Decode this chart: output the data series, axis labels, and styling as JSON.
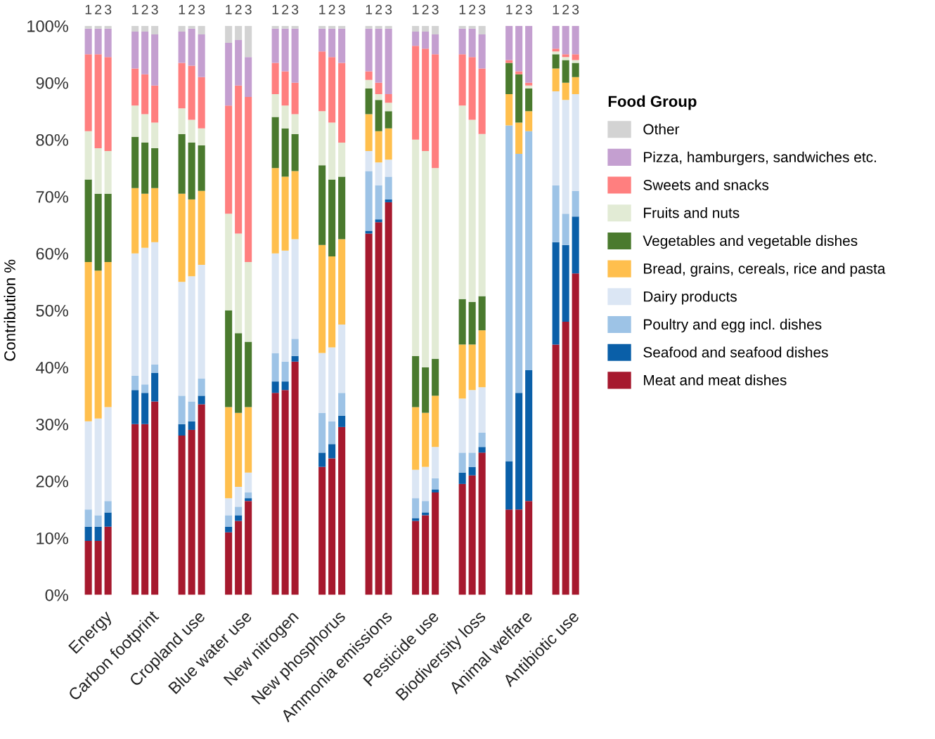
{
  "chart_data": {
    "type": "bar",
    "stacked": true,
    "ylabel": "Contribution %",
    "legend_title": "Food Group",
    "legend": "right",
    "grid": false,
    "categories": [
      "1",
      "2",
      "3",
      "1",
      "2",
      "3",
      "1",
      "2",
      "3",
      "1",
      "2",
      "3",
      "1",
      "2",
      "3",
      "1",
      "2",
      "3",
      "1",
      "2",
      "3",
      "1",
      "2",
      "3",
      "1",
      "2",
      "3",
      "1",
      "2",
      "3",
      "1",
      "2",
      "3"
    ],
    "annotations": [
      "Energy",
      "Carbon footprint",
      "Cropland use",
      "Blue water use",
      "New nitrogen",
      "New phosphorus",
      "Ammonia emissions",
      "Pesticide use",
      "Biodiversity loss",
      "Animal welfare",
      "Antibiotic use"
    ],
    "ylim": [
      0,
      100
    ],
    "yticks": [
      {
        "value": 0,
        "label": "0%"
      },
      {
        "value": 10,
        "label": "10%"
      },
      {
        "value": 20,
        "label": "20%"
      },
      {
        "value": 30,
        "label": "30%"
      },
      {
        "value": 40,
        "label": "40%"
      },
      {
        "value": 50,
        "label": "50%"
      },
      {
        "value": 60,
        "label": "60%"
      },
      {
        "value": 70,
        "label": "70%"
      },
      {
        "value": 80,
        "label": "80%"
      },
      {
        "value": 90,
        "label": "90%"
      },
      {
        "value": 100,
        "label": "100%"
      }
    ],
    "series": [
      {
        "name": "Meat and meat dishes",
        "color": "#a6192e",
        "values": [
          9.5,
          9.5,
          12,
          30,
          30,
          34,
          28,
          29,
          33.5,
          11,
          13,
          16.5,
          35.5,
          36,
          41,
          22.5,
          24,
          29.5,
          63.5,
          65.5,
          69,
          13,
          14,
          18,
          19.5,
          21,
          25,
          15,
          15,
          16.5,
          44,
          48,
          56.5
        ]
      },
      {
        "name": "Seafood and seafood dishes",
        "color": "#0a5fa8",
        "values": [
          2.5,
          2.5,
          2.5,
          6,
          5.5,
          5,
          2,
          1.5,
          1.5,
          1,
          1,
          0.5,
          2,
          1.5,
          1,
          2.5,
          2.5,
          2,
          0.5,
          0.5,
          0.5,
          0.5,
          0.5,
          0.5,
          2,
          1.5,
          1,
          8.5,
          20.5,
          23,
          18,
          13.5,
          10
        ]
      },
      {
        "name": "Poultry and egg incl. dishes",
        "color": "#9dc3e6",
        "values": [
          3,
          2,
          2,
          2.5,
          1.5,
          1.5,
          5,
          3.5,
          3,
          2,
          1.5,
          1,
          5,
          3.5,
          3,
          7,
          4,
          4,
          10.5,
          6,
          4,
          3.5,
          2,
          2,
          3.5,
          2.5,
          2.5,
          59,
          42,
          42,
          10,
          5.5,
          4.5
        ]
      },
      {
        "name": "Dairy products",
        "color": "#dbe6f4",
        "values": [
          15.5,
          17,
          16.5,
          21.5,
          24,
          21.5,
          20,
          22,
          20,
          3,
          3.5,
          3.5,
          17.5,
          19.5,
          17.5,
          10.5,
          13,
          12,
          3.5,
          4,
          3,
          5,
          6,
          5.5,
          9.5,
          11,
          8,
          0,
          0,
          0,
          16.5,
          20,
          17
        ]
      },
      {
        "name": "Bread, grains, cereals, rice and pasta",
        "color": "#ffbf4d",
        "values": [
          28,
          26,
          25.5,
          11.5,
          9.5,
          9.5,
          15.5,
          13.5,
          13,
          16,
          13,
          11.5,
          15,
          13,
          12,
          19,
          16,
          15,
          6.5,
          5.5,
          5.5,
          11,
          9.5,
          9,
          9.5,
          8,
          10,
          5.5,
          5.5,
          3.5,
          4,
          3,
          3
        ]
      },
      {
        "name": "Vegetables and vegetable dishes",
        "color": "#4a7a2e",
        "values": [
          14.5,
          13.5,
          12,
          9,
          9,
          7,
          10.5,
          10,
          8,
          17,
          14,
          11.5,
          9,
          8.5,
          6.5,
          14,
          13.5,
          11,
          4.5,
          5.5,
          3,
          9,
          8,
          6.5,
          8,
          7.5,
          6,
          5.5,
          8.5,
          4,
          2.5,
          4,
          2.5
        ]
      },
      {
        "name": "Fruits and nuts",
        "color": "#e2ebd5",
        "values": [
          8.5,
          8,
          7.5,
          5.5,
          5,
          4.5,
          4.5,
          4,
          3,
          17,
          17.5,
          14,
          4,
          4,
          3.5,
          9.5,
          10,
          6,
          1.5,
          1,
          1.5,
          38,
          38,
          33.5,
          34,
          32,
          28.5,
          0,
          0,
          0.5,
          0.5,
          0.5,
          0.5
        ]
      },
      {
        "name": "Sweets and snacks",
        "color": "#ff7f7f",
        "values": [
          13.5,
          16.5,
          16.5,
          6.5,
          7,
          6.5,
          8,
          9.5,
          9,
          19,
          26,
          29,
          5.5,
          6,
          5.5,
          10.5,
          11.5,
          14,
          1.5,
          2,
          1.5,
          16.5,
          18,
          20,
          9,
          11,
          11.5,
          0.5,
          0.5,
          0.5,
          0.5,
          0.5,
          1
        ]
      },
      {
        "name": "Pizza, hamburgers, sandwiches etc.",
        "color": "#c49fd0",
        "values": [
          4.5,
          4.5,
          5,
          6.5,
          7.5,
          9,
          5.5,
          6.5,
          7.5,
          11,
          8,
          7,
          6,
          7.5,
          9.5,
          4,
          5,
          6,
          7.5,
          9.5,
          11.5,
          2.5,
          3,
          3.5,
          4.5,
          5,
          6,
          6,
          8,
          10,
          4,
          5,
          5
        ]
      },
      {
        "name": "Other",
        "color": "#d3d3d3",
        "values": [
          0.5,
          0.5,
          0.5,
          1,
          1,
          1.5,
          1,
          0.5,
          1.5,
          3,
          2.5,
          5.5,
          0.5,
          0.5,
          0.5,
          0.5,
          0.5,
          0.5,
          0.5,
          0.5,
          0.5,
          1,
          1,
          1.5,
          0.5,
          0.5,
          1.5,
          0,
          0,
          0,
          0,
          0,
          0
        ]
      }
    ]
  }
}
